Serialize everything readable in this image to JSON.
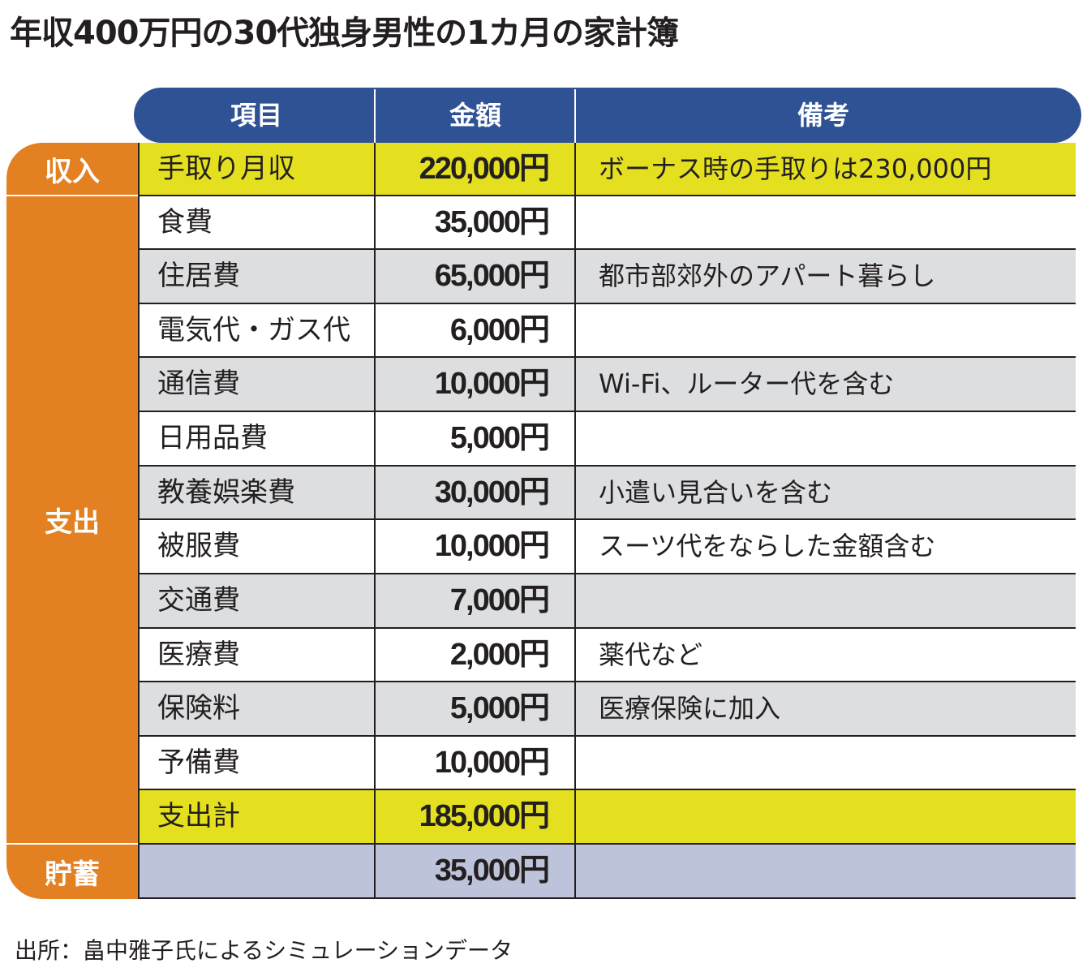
{
  "title": "年収400万円の30代独身男性の1カ月の家計簿",
  "header": {
    "item": "項目",
    "amount": "金額",
    "note": "備考"
  },
  "groups": {
    "income": "収入",
    "expense": "支出",
    "savings": "貯蓄"
  },
  "rows": [
    {
      "item": "手取り月収",
      "amount": "220,000円",
      "note": "ボーナス時の手取りは230,000円",
      "style": "highlight"
    },
    {
      "item": "食費",
      "amount": "35,000円",
      "note": "",
      "style": "white"
    },
    {
      "item": "住居費",
      "amount": "65,000円",
      "note": "都市部郊外のアパート暮らし",
      "style": "gray"
    },
    {
      "item": "電気代・ガス代",
      "amount": "6,000円",
      "note": "",
      "style": "white"
    },
    {
      "item": "通信費",
      "amount": "10,000円",
      "note": "Wi-Fi、ルーター代を含む",
      "style": "gray"
    },
    {
      "item": "日用品費",
      "amount": "5,000円",
      "note": "",
      "style": "white"
    },
    {
      "item": "教養娯楽費",
      "amount": "30,000円",
      "note": "小遣い見合いを含む",
      "style": "gray"
    },
    {
      "item": "被服費",
      "amount": "10,000円",
      "note": "スーツ代をならした金額含む",
      "style": "white"
    },
    {
      "item": "交通費",
      "amount": "7,000円",
      "note": "",
      "style": "gray"
    },
    {
      "item": "医療費",
      "amount": "2,000円",
      "note": "薬代など",
      "style": "white"
    },
    {
      "item": "保険料",
      "amount": "5,000円",
      "note": "医療保険に加入",
      "style": "gray"
    },
    {
      "item": "予備費",
      "amount": "10,000円",
      "note": "",
      "style": "white"
    },
    {
      "item": "支出計",
      "amount": "185,000円",
      "note": "",
      "style": "highlight"
    },
    {
      "item": "",
      "amount": "35,000円",
      "note": "",
      "style": "savings"
    }
  ],
  "colors": {
    "header": "#2e5294",
    "group": "#e38022",
    "highlight": "#e5e01f",
    "gray": "#dcdedf",
    "white": "#ffffff",
    "savings": "#bec3dc"
  },
  "source": "出所：畠中雅子氏によるシミュレーションデータ"
}
